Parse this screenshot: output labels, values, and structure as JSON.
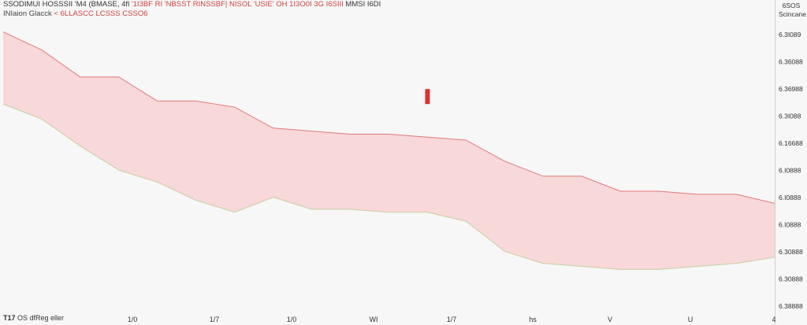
{
  "legend": {
    "line1_black": "SSODIMUI HOSSSII  'M4  (BMASE, 4fl",
    "line1_red": "'1I3BF  RI 'NBSST  RINSSBF|  NISOL  'USIE'  OH 1I3O0I  3G I6SIII",
    "line1_black2": "MMSI I6DI",
    "line2_black": "INIaion  Glacck",
    "line2_red": "< 6LLASCC  LCSSS  CSSO6"
  },
  "scale_header": {
    "top": "6SOS",
    "sub": "Scincane"
  },
  "bottom_left": {
    "badge": "T17",
    "text": "OS dfReg eller"
  },
  "colors": {
    "cloud_fill": "#f8d8d8",
    "cloud_upper": "#e07a7a",
    "cloud_lower": "#c9cfa0",
    "marker": "#e03030"
  },
  "chart_data": {
    "type": "area",
    "title": "",
    "xlabel": "",
    "ylabel": "",
    "x_ticks": [
      "1/0",
      "1/7",
      "1/0",
      "WI",
      "1/7",
      "hs",
      "V",
      "U",
      "4"
    ],
    "y_ticks": [
      "6.3I089",
      "6.36088",
      "6.36988",
      "6.3I088",
      "6.16688",
      "6.I0888",
      "6.I0888",
      "6.I0888",
      "6.30888",
      "6.30888",
      "6.38888"
    ],
    "ylim": [
      0,
      10
    ],
    "x": [
      0,
      5,
      10,
      15,
      20,
      25,
      30,
      35,
      40,
      45,
      50,
      55,
      60,
      65,
      70,
      75,
      80,
      85,
      90,
      95,
      100
    ],
    "series": [
      {
        "values": [
          9.2,
          8.6,
          7.7,
          7.7,
          6.9,
          6.9,
          6.7,
          6.0,
          5.9,
          5.8,
          5.8,
          5.7,
          5.6,
          4.9,
          4.4,
          4.4,
          3.9,
          3.9,
          3.8,
          3.8,
          3.5
        ]
      },
      {
        "values": [
          6.8,
          6.3,
          5.4,
          4.6,
          4.2,
          3.6,
          3.2,
          3.7,
          3.3,
          3.3,
          3.2,
          3.2,
          2.9,
          1.9,
          1.5,
          1.4,
          1.3,
          1.3,
          1.4,
          1.5,
          1.7
        ]
      }
    ],
    "marker": {
      "x": 55,
      "y_low": 6.8,
      "y_high": 7.3
    }
  }
}
